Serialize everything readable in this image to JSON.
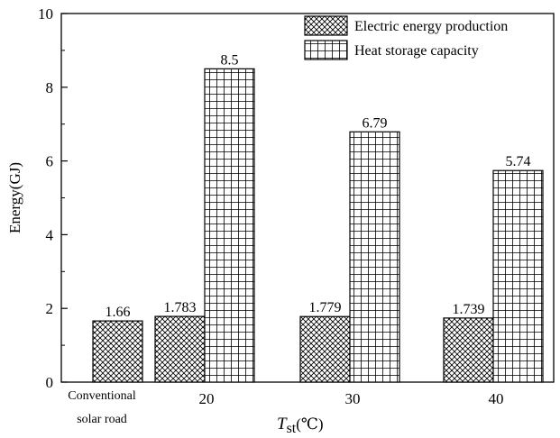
{
  "chart_data": {
    "type": "bar",
    "categories": [
      "Conventional solar road",
      "20",
      "30",
      "40"
    ],
    "category_lines": [
      [
        "Conventional",
        "solar road"
      ],
      [
        "20"
      ],
      [
        "30"
      ],
      [
        "40"
      ]
    ],
    "series": [
      {
        "name": "Electric energy production",
        "values": [
          1.66,
          1.783,
          1.779,
          1.739
        ],
        "labels": [
          "1.66",
          "1.783",
          "1.779",
          "1.739"
        ],
        "pattern": "crosshatch"
      },
      {
        "name": "Heat storage capacity",
        "values": [
          null,
          8.5,
          6.79,
          5.74
        ],
        "labels": [
          "",
          "8.5",
          "6.79",
          "5.74"
        ],
        "pattern": "grid"
      }
    ],
    "xlabel_main": "T",
    "xlabel_sub": "st",
    "xlabel_unit": "(℃)",
    "ylabel": "Energy(GJ)",
    "ylim": [
      0,
      10
    ],
    "yticks": [
      "0",
      "2",
      "4",
      "6",
      "8",
      "10"
    ],
    "legend_position": "top-right",
    "grid": false
  }
}
